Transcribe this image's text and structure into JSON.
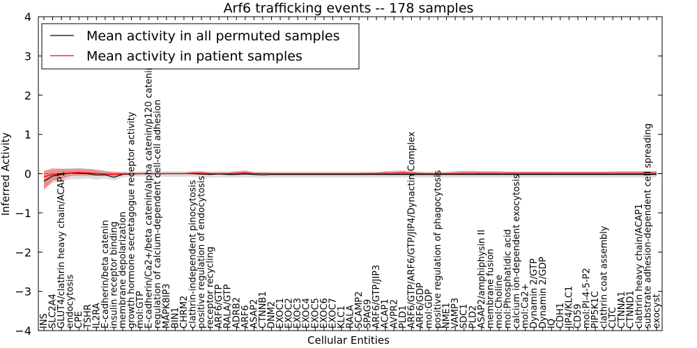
{
  "chart_data": {
    "type": "line",
    "title": "Arf6 trafficking events -- 178 samples",
    "xlabel": "Cellular Entities",
    "ylabel": "Inferred Activity",
    "ylim": [
      -4,
      4
    ],
    "yticks": [
      -4,
      -3,
      -2,
      -1,
      0,
      1,
      2,
      3,
      4
    ],
    "ytick_labels": [
      "−4",
      "−3",
      "−2",
      "−1",
      "0",
      "1",
      "2",
      "3",
      "4"
    ],
    "legend_position": "top-left",
    "categories": [
      "INS",
      "SLC2A4",
      "GLUT4/clathrin heavy chain/ACAP1",
      "endocytosis",
      "CPE",
      "TSHR",
      "IL2RA",
      "E-cadherin/beta catenin",
      "insulin receptor binding",
      "membrane depolarization",
      "growth hormone secretagogue receptor activity",
      "mol:GTP",
      "E-cadherin/Ca2+/beta catenin/alpha catenin/p120 catenin",
      "regulation of calcium-dependent cell-cell adhesion",
      "MAPK8IP3",
      "BIN1",
      "CHRM2",
      "clathrin-independent pinocytosis",
      "positive regulation of endocytosis",
      "receptor recycling",
      "ARF6/GTP",
      "RALA/GTP",
      "ADRB2",
      "ARF6",
      "ASAP2",
      "CTNNB1",
      "DNM2",
      "EXOC1",
      "EXOC2",
      "EXOC3",
      "EXOC4",
      "EXOC5",
      "EXOC6",
      "EXOC7",
      "KLC1",
      "RALA",
      "SCAMP2",
      "SPAG9",
      "ARF6/GTP/JIP3",
      "ACAP1",
      "AVPR2",
      "PLD1",
      "ARF6/GTP/ARF6/GTP/JIP4/Dynactin Complex",
      "ARF6/GDP",
      "mol:GDP",
      "positive regulation of phagocytosis",
      "NME1",
      "VAMP3",
      "SDC1",
      "PLD2",
      "ASAP2/amphiphysin II",
      "membrane fusion",
      "mol:Choline",
      "mol:Phosphatidic acid",
      "calcium ion-dependent exocytosis",
      "mol:Ca2+",
      "Dynamin 2/GTP",
      "Dynamin 2/GDP",
      "IQ",
      "CDH1",
      "JIP4/KLC1",
      "CD59",
      "mol:PI-4-5-P2",
      "PIP5K1C",
      "clathrin coat assembly",
      "CLTC",
      "CTNNA1",
      "CTNND1",
      "clathrin heavy chain/ACAP1",
      "substrate adhesion-dependent cell spreading",
      "exocyst"
    ],
    "series": [
      {
        "name": "Mean activity in all permuted samples",
        "color": "#000000",
        "values": [
          -0.19,
          -0.06,
          -0.02,
          0.02,
          0.01,
          0.0,
          -0.03,
          -0.03,
          -0.09,
          -0.02,
          -0.01,
          0.0,
          0.0,
          0.0,
          0.0,
          0.0,
          0.0,
          0.0,
          -0.01,
          -0.02,
          -0.01,
          -0.02,
          -0.02,
          -0.01,
          -0.02,
          -0.03,
          -0.02,
          -0.02,
          -0.02,
          -0.02,
          -0.02,
          -0.02,
          -0.02,
          -0.02,
          -0.02,
          -0.02,
          -0.02,
          -0.02,
          -0.02,
          -0.02,
          -0.02,
          -0.02,
          -0.02,
          -0.02,
          -0.02,
          -0.02,
          -0.02,
          -0.02,
          -0.02,
          -0.02,
          -0.02,
          -0.02,
          -0.02,
          -0.02,
          -0.02,
          -0.02,
          -0.02,
          -0.02,
          -0.02,
          -0.02,
          -0.02,
          -0.02,
          -0.02,
          -0.02,
          -0.02,
          -0.02,
          -0.02,
          -0.02,
          -0.02,
          -0.02,
          -0.02
        ],
        "band_lower": [
          -0.38,
          -0.24,
          -0.2,
          -0.14,
          -0.14,
          -0.12,
          -0.15,
          -0.12,
          -0.17,
          -0.1,
          -0.08,
          -0.07,
          -0.08,
          -0.08,
          -0.08,
          -0.08,
          -0.08,
          -0.08,
          -0.1,
          -0.1,
          -0.09,
          -0.1,
          -0.1,
          -0.09,
          -0.1,
          -0.11,
          -0.1,
          -0.1,
          -0.1,
          -0.1,
          -0.1,
          -0.1,
          -0.1,
          -0.1,
          -0.1,
          -0.1,
          -0.1,
          -0.1,
          -0.1,
          -0.1,
          -0.1,
          -0.1,
          -0.1,
          -0.1,
          -0.1,
          -0.1,
          -0.1,
          -0.1,
          -0.1,
          -0.1,
          -0.1,
          -0.1,
          -0.1,
          -0.1,
          -0.1,
          -0.1,
          -0.1,
          -0.1,
          -0.1,
          -0.1,
          -0.1,
          -0.1,
          -0.1,
          -0.1,
          -0.1,
          -0.1,
          -0.1,
          -0.1,
          -0.1,
          -0.1,
          -0.1
        ],
        "band_upper": [
          0.05,
          0.1,
          0.13,
          0.14,
          0.14,
          0.12,
          0.1,
          0.08,
          0.03,
          0.05,
          0.05,
          0.05,
          0.06,
          0.06,
          0.06,
          0.06,
          0.06,
          0.06,
          0.05,
          0.05,
          0.06,
          0.05,
          0.05,
          0.06,
          0.05,
          0.05,
          0.05,
          0.05,
          0.05,
          0.05,
          0.05,
          0.05,
          0.05,
          0.05,
          0.05,
          0.05,
          0.05,
          0.05,
          0.05,
          0.05,
          0.05,
          0.05,
          0.05,
          0.05,
          0.05,
          0.05,
          0.05,
          0.05,
          0.05,
          0.05,
          0.05,
          0.05,
          0.05,
          0.05,
          0.05,
          0.05,
          0.05,
          0.05,
          0.05,
          0.05,
          0.05,
          0.05,
          0.05,
          0.05,
          0.05,
          0.05,
          0.05,
          0.05,
          0.05,
          0.05,
          0.05
        ]
      },
      {
        "name": "Mean activity in patient samples",
        "color": "#ff0000",
        "values": [
          -0.08,
          -0.02,
          0.0,
          0.02,
          0.03,
          0.02,
          0.01,
          -0.01,
          -0.02,
          -0.01,
          0.0,
          0.0,
          0.0,
          0.0,
          0.0,
          0.0,
          0.0,
          0.01,
          0.01,
          0.0,
          0.0,
          0.0,
          0.01,
          0.02,
          0.0,
          0.0,
          0.0,
          0.0,
          0.0,
          0.0,
          0.0,
          0.0,
          0.0,
          0.0,
          0.0,
          0.0,
          0.0,
          0.0,
          0.0,
          0.01,
          0.01,
          0.02,
          0.01,
          0.0,
          0.0,
          0.0,
          0.0,
          0.0,
          0.01,
          0.01,
          0.01,
          0.01,
          0.01,
          0.01,
          0.01,
          0.01,
          0.01,
          0.01,
          0.01,
          0.01,
          0.01,
          0.01,
          0.01,
          0.01,
          0.01,
          0.01,
          0.01,
          0.01,
          0.01,
          0.01,
          0.01
        ],
        "band_lower": [
          -0.42,
          -0.18,
          -0.14,
          -0.06,
          -0.05,
          -0.05,
          -0.06,
          -0.05,
          -0.06,
          -0.03,
          -0.01,
          -0.01,
          -0.01,
          -0.01,
          -0.01,
          -0.01,
          -0.01,
          -0.02,
          -0.03,
          -0.02,
          -0.01,
          -0.01,
          -0.03,
          -0.02,
          -0.01,
          -0.01,
          -0.01,
          -0.01,
          -0.01,
          -0.01,
          -0.01,
          -0.01,
          -0.01,
          -0.01,
          -0.01,
          -0.01,
          -0.01,
          -0.01,
          -0.01,
          -0.03,
          -0.03,
          -0.02,
          -0.03,
          -0.01,
          -0.01,
          -0.01,
          -0.01,
          -0.02,
          -0.02,
          -0.02,
          -0.02,
          -0.02,
          -0.02,
          -0.02,
          -0.02,
          -0.02,
          -0.02,
          -0.02,
          -0.02,
          -0.02,
          -0.02,
          -0.02,
          -0.02,
          -0.02,
          -0.02,
          -0.02,
          -0.02,
          -0.02,
          -0.02,
          -0.02,
          -0.02
        ],
        "band_upper": [
          0.08,
          0.14,
          0.12,
          0.12,
          0.13,
          0.12,
          0.1,
          0.06,
          0.05,
          0.03,
          0.02,
          0.02,
          0.02,
          0.02,
          0.02,
          0.02,
          0.02,
          0.05,
          0.06,
          0.03,
          0.03,
          0.03,
          0.06,
          0.08,
          0.03,
          0.03,
          0.02,
          0.02,
          0.02,
          0.02,
          0.02,
          0.02,
          0.02,
          0.02,
          0.02,
          0.02,
          0.02,
          0.03,
          0.03,
          0.06,
          0.07,
          0.08,
          0.06,
          0.03,
          0.02,
          0.02,
          0.03,
          0.06,
          0.07,
          0.07,
          0.06,
          0.06,
          0.06,
          0.05,
          0.05,
          0.05,
          0.05,
          0.05,
          0.05,
          0.05,
          0.05,
          0.05,
          0.05,
          0.05,
          0.05,
          0.06,
          0.06,
          0.06,
          0.06,
          0.06,
          0.06
        ]
      }
    ]
  }
}
